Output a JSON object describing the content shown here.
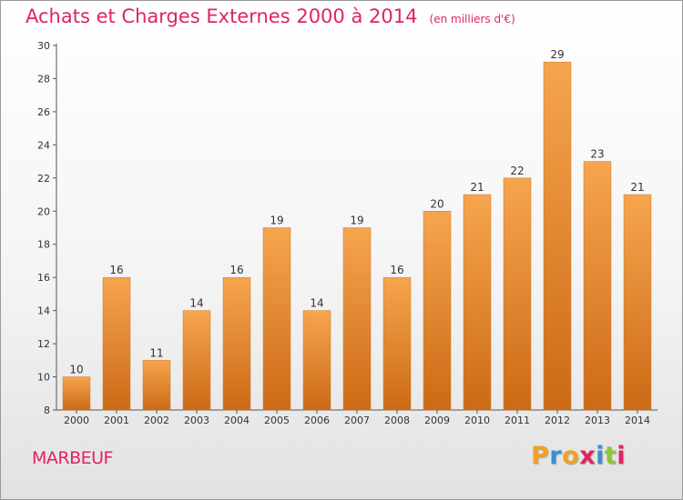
{
  "header": {
    "title": "Achats et Charges Externes 2000 à 2014",
    "unit": "(en milliers d'€)"
  },
  "footer": {
    "city": "MARBEUF",
    "logo_letters": [
      "P",
      "r",
      "o",
      "x",
      "i",
      "t",
      "i"
    ],
    "logo_colors": [
      "#f0a02a",
      "#3a8fd0",
      "#f0a02a",
      "#e0245e",
      "#3a8fd0",
      "#8fc43a",
      "#e0245e"
    ]
  },
  "colors": {
    "bar_top": "#f6a54e",
    "bar_bottom": "#cc6a16",
    "axis": "#555555",
    "accent": "#e0245e"
  },
  "chart_data": {
    "type": "bar",
    "title": "Achats et Charges Externes 2000 à 2014",
    "categories": [
      "2000",
      "2001",
      "2002",
      "2003",
      "2004",
      "2005",
      "2006",
      "2007",
      "2008",
      "2009",
      "2010",
      "2011",
      "2012",
      "2013",
      "2014"
    ],
    "values": [
      10,
      16,
      11,
      14,
      16,
      19,
      14,
      19,
      16,
      20,
      21,
      22,
      29,
      23,
      21
    ],
    "ylim": [
      8,
      30
    ],
    "yticks": [
      8,
      10,
      12,
      14,
      16,
      18,
      20,
      22,
      24,
      26,
      28,
      30
    ],
    "grid": false,
    "legend": "none",
    "data_labels": true
  }
}
